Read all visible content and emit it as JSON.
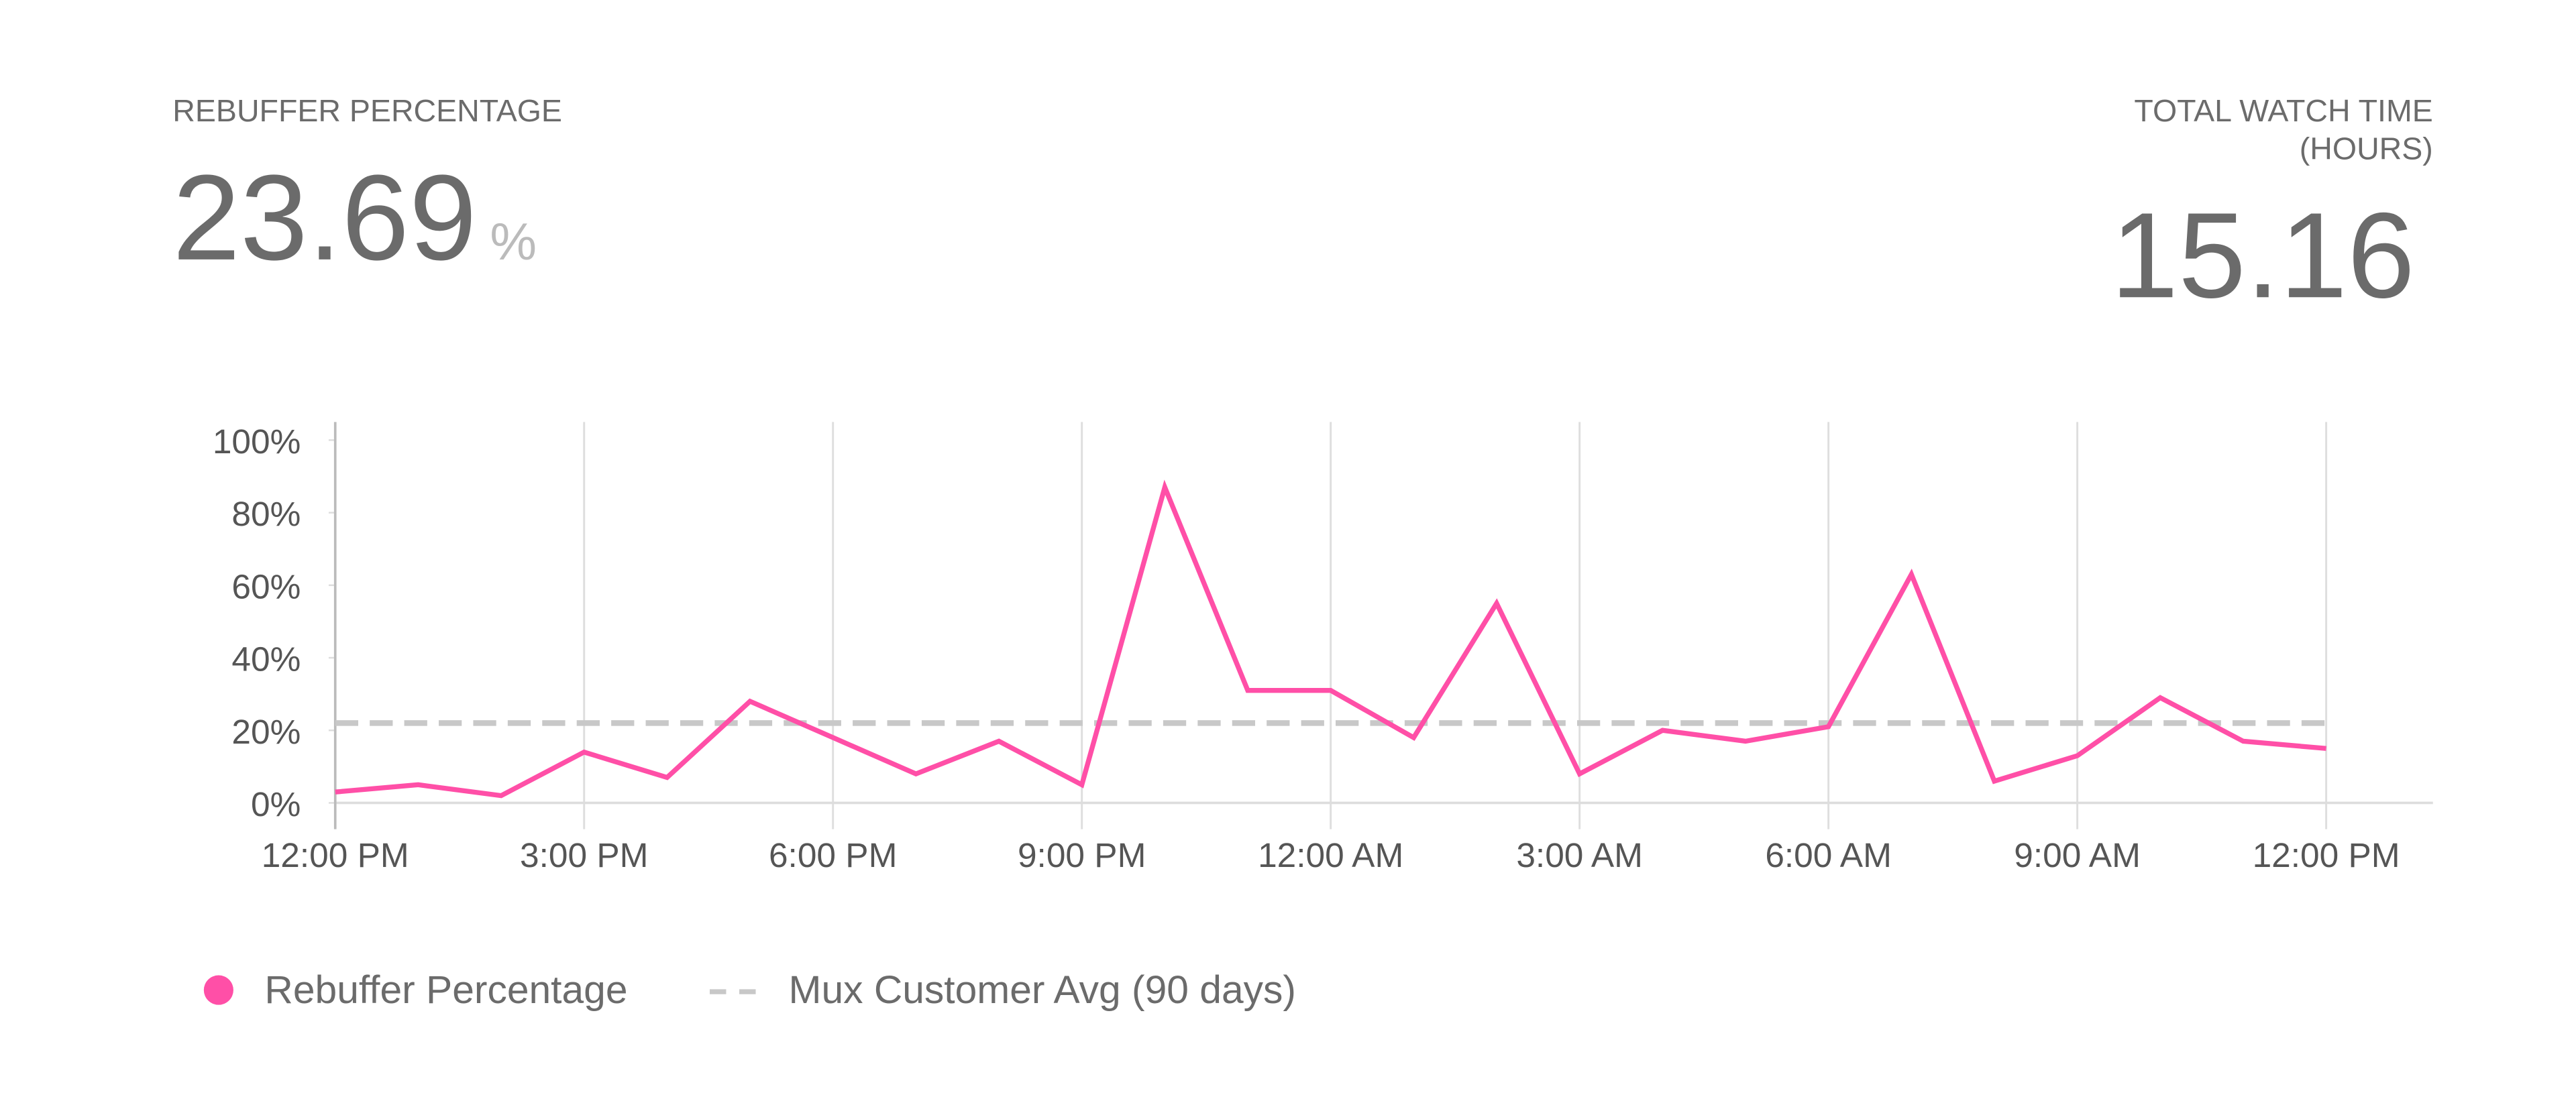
{
  "metrics": [
    {
      "label": "REBUFFER PERCENTAGE",
      "value": 23.69,
      "unit": "%"
    },
    {
      "label_lines": [
        "TOTAL WATCH TIME",
        "(HOURS)"
      ],
      "value": 15.16
    }
  ],
  "chart_data": {
    "type": "line",
    "categories": [
      "12:00 PM",
      null,
      null,
      "3:00 PM",
      null,
      null,
      "6:00 PM",
      null,
      null,
      "9:00 PM",
      null,
      null,
      "12:00 AM",
      null,
      null,
      "3:00 AM",
      null,
      null,
      "6:00 AM",
      null,
      null,
      "9:00 AM",
      null,
      null,
      "12:00 PM"
    ],
    "series": [
      {
        "name": "Rebuffer Percentage",
        "color": "#ff4fa7",
        "values": [
          3,
          5,
          2,
          14,
          7,
          28,
          18,
          8,
          17,
          5,
          87,
          31,
          31,
          18,
          55,
          8,
          20,
          17,
          21,
          63,
          6,
          13,
          29,
          17,
          15
        ]
      }
    ],
    "reference_lines": [
      {
        "name": "Mux Customer Avg (90 days)",
        "value": 22,
        "color": "#c8c8c8",
        "dashed": true
      }
    ],
    "ylim": [
      0,
      105
    ],
    "yticks": [
      {
        "value": 0,
        "label": "0%"
      },
      {
        "value": 20,
        "label": "20%"
      },
      {
        "value": 40,
        "label": "40%"
      },
      {
        "value": 60,
        "label": "60%"
      },
      {
        "value": 80,
        "label": "80%"
      },
      {
        "value": 100,
        "label": "100%"
      }
    ],
    "grid": true
  }
}
